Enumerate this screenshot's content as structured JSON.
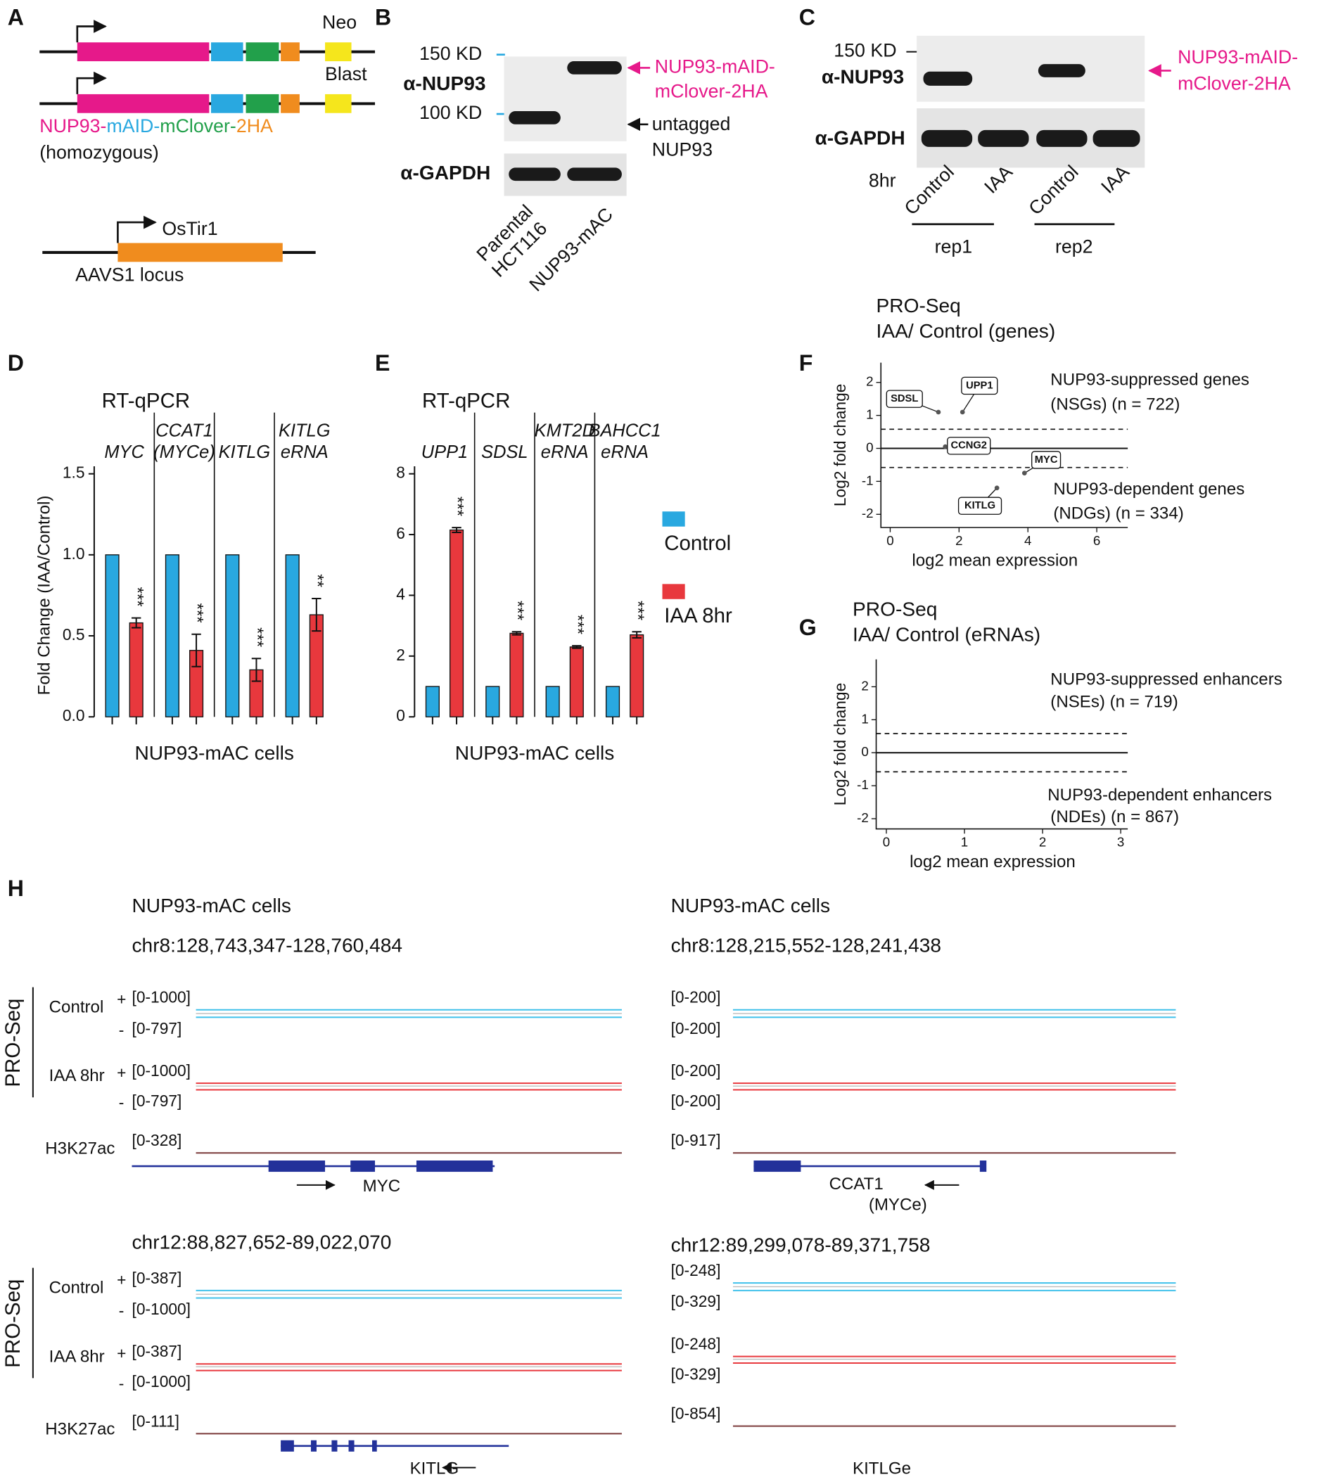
{
  "panels": {
    "a": {
      "letter": "A",
      "neo": "Neo",
      "blast": "Blast",
      "construct_parts": [
        "NUP93-",
        "mAID-",
        "mClover-",
        "2HA"
      ],
      "zygosity": "(homozygous)",
      "ostir": "OsTir1",
      "locus": "AAVS1 locus"
    },
    "b": {
      "letter": "B",
      "marker_150": "150 KD",
      "marker_100": "100 KD",
      "antibody_1": "α-NUP93",
      "antibody_2": "α-GAPDH",
      "tagged_label": [
        "NUP93-mAID-",
        "mClover-2HA"
      ],
      "untagged_label": [
        "untagged",
        "NUP93"
      ],
      "lanes": [
        "Parental",
        "HCT116",
        "NUP93-mAC"
      ]
    },
    "c": {
      "letter": "C",
      "marker_150": "150 KD",
      "antibody_1": "α-NUP93",
      "antibody_2": "α-GAPDH",
      "tagged_label": [
        "NUP93-mAID-",
        "mClover-2HA"
      ],
      "time": "8hr",
      "lanes": [
        "Control",
        "IAA",
        "Control",
        "IAA"
      ],
      "replicates": [
        "rep1",
        "rep2"
      ]
    },
    "h": {
      "letter": "H",
      "group_label": "PRO-Seq",
      "track_labels": {
        "control": "Control",
        "iaa": "IAA 8hr",
        "h3k27ac": "H3K27ac",
        "plus": "+",
        "minus": "-"
      },
      "blocks": [
        {
          "cells": "NUP93-mAC cells",
          "locus": "chr8:128,743,347-128,760,484",
          "ranges": [
            "[0-1000]",
            "[0-797]",
            "[0-1000]",
            "[0-797]",
            "[0-328]"
          ],
          "gene": [
            "MYC"
          ]
        },
        {
          "cells": "NUP93-mAC cells",
          "locus": "chr8:128,215,552-128,241,438",
          "ranges": [
            "[0-200]",
            "[0-200]",
            "[0-200]",
            "[0-200]",
            "[0-917]"
          ],
          "gene": [
            "CCAT1",
            "(MYCe)"
          ]
        },
        {
          "locus": "chr12:88,827,652-89,022,070",
          "ranges": [
            "[0-387]",
            "[0-1000]",
            "[0-387]",
            "[0-1000]",
            "[0-111]"
          ],
          "gene": [
            "KITLG"
          ]
        },
        {
          "locus": "chr12:89,299,078-89,371,758",
          "ranges": [
            "[0-248]",
            "[0-329]",
            "[0-248]",
            "[0-329]",
            "[0-854]"
          ],
          "gene": [
            "KITLGe"
          ]
        }
      ]
    }
  },
  "chart_data": [
    {
      "type": "bar",
      "panel": "D",
      "title": "RT-qPCR",
      "x_label": "NUP93-mAC cells",
      "y_label": "Fold Change (IAA/Control)",
      "categories": [
        "MYC",
        "CCAT1 (MYCe)",
        "KITLG",
        "KITLG eRNA"
      ],
      "series": [
        {
          "color": "#29a8e0",
          "values": [
            1,
            1,
            1,
            1
          ],
          "errors": [
            0,
            0,
            0,
            0
          ]
        },
        {
          "color": "#e8383d",
          "values": [
            0.58,
            0.41,
            0.29,
            0.63
          ],
          "errors": [
            0.03,
            0.1,
            0.07,
            0.1
          ]
        }
      ],
      "significance": [
        "***",
        "***",
        "***",
        "**"
      ],
      "ylim": [
        0,
        1.5
      ],
      "yticks": [
        {
          "value": 0,
          "label": "0.0"
        },
        0.5,
        {
          "value": 1,
          "label": "1.0"
        },
        1.5
      ]
    },
    {
      "type": "bar",
      "panel": "E",
      "title": "RT-qPCR",
      "x_label": "NUP93-mAC cells",
      "categories": [
        "UPP1",
        "SDSL",
        "KMT2D eRNA",
        "BAHCC1 eRNA"
      ],
      "series": [
        {
          "name": "Control",
          "color": "#29a8e0",
          "values": [
            1,
            1,
            1,
            1
          ],
          "errors": [
            0,
            0,
            0,
            0
          ]
        },
        {
          "name": "IAA 8hr",
          "color": "#e8383d",
          "values": [
            6.15,
            2.75,
            2.3,
            2.7
          ],
          "errors": [
            0.08,
            0.05,
            0.04,
            0.1
          ]
        }
      ],
      "significance": [
        "***",
        "***",
        "***",
        "***"
      ],
      "ylim": [
        0,
        8
      ],
      "yticks": [
        0,
        2,
        4,
        6,
        8
      ],
      "legend": "right"
    },
    {
      "type": "scatter",
      "panel": "F",
      "title": "PRO-Seq",
      "subtitle": "IAA/ Control (genes)",
      "x_label": "log2 mean expression",
      "y_label": "Log2 fold change",
      "xlim": [
        -0.27,
        6.9
      ],
      "ylim": [
        -2.4,
        2.6
      ],
      "xticks": [
        0,
        2,
        4,
        6
      ],
      "yticks": [
        -2,
        -1,
        0,
        1,
        2
      ],
      "reference_line": 0,
      "cutoffs": [
        0.58,
        -0.58
      ],
      "series": [
        {
          "color": "#555555",
          "x": [
            1.4,
            2.1,
            1.6,
            3.9,
            3.1
          ],
          "values": [
            1.1,
            1.1,
            0.05,
            -0.75,
            -1.2
          ],
          "point_labels": [
            "SDSL",
            "UPP1",
            "CCNG2",
            "MYC",
            "KITLG"
          ]
        }
      ],
      "annotations": [
        "NUP93-suppressed genes",
        "(NSGs) (n = 722)",
        "NUP93-dependent genes",
        "(NDGs) (n = 334)"
      ]
    },
    {
      "type": "scatter",
      "panel": "G",
      "title": "PRO-Seq",
      "subtitle": "IAA/ Control (eRNAs)",
      "x_label": "log2 mean expression",
      "y_label": "Log2 fold change",
      "xlim": [
        -0.13,
        3.09
      ],
      "ylim": [
        -2.31,
        2.83
      ],
      "xticks": [
        0,
        1,
        2,
        3
      ],
      "yticks": [
        -2,
        -1,
        0,
        1,
        2
      ],
      "reference_line": 0,
      "cutoffs": [
        0.58,
        -0.58
      ],
      "annotations": [
        "NUP93-suppressed enhancers",
        "(NSEs) (n = 719)",
        "NUP93-dependent enhancers",
        "(NDEs) (n = 867)"
      ]
    }
  ]
}
